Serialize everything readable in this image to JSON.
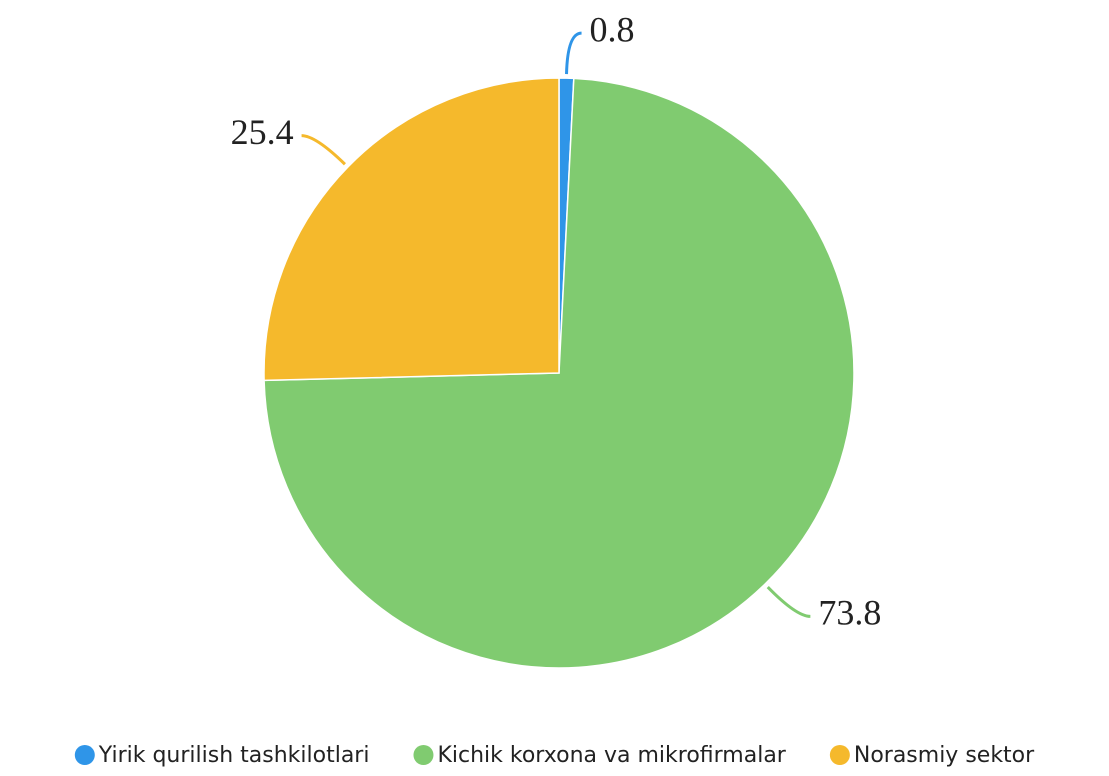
{
  "chart_data": {
    "type": "pie",
    "categories": [
      "Yirik qurilish tashkilotlari",
      "Kichik korxona va mikrofirmalar",
      "Norasmiy sektor"
    ],
    "values": [
      0.8,
      73.8,
      25.4
    ],
    "colors": [
      "#2f95e8",
      "#80cb70",
      "#f5b92c"
    ],
    "legend": "bottom"
  }
}
